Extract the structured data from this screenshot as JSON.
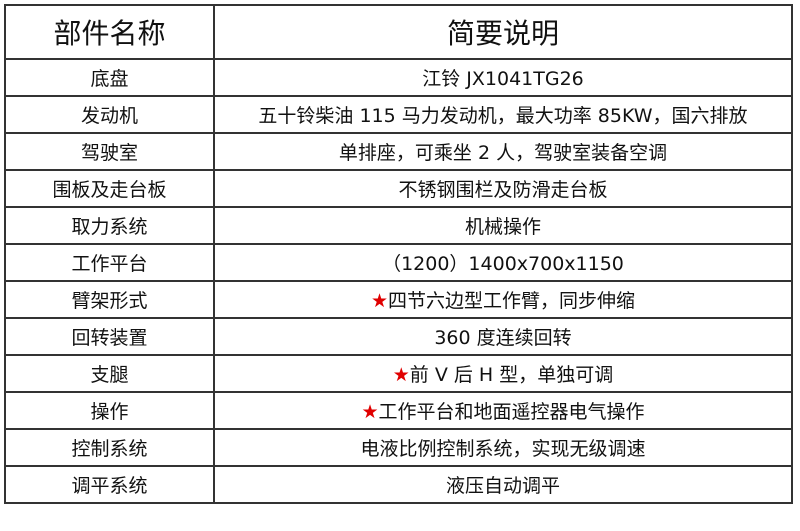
{
  "header": {
    "col1": "部件名称",
    "col2": "简要说明"
  },
  "star_color": "#e00000",
  "rows": [
    {
      "name": "底盘",
      "desc": "江铃 JX1041TG26",
      "star": false
    },
    {
      "name": "发动机",
      "desc": "五十铃柴油 115 马力发动机，最大功率 85KW，国六排放",
      "star": false
    },
    {
      "name": "驾驶室",
      "desc": "单排座，可乘坐 2 人，驾驶室装备空调",
      "star": false
    },
    {
      "name": "围板及走台板",
      "desc": "不锈钢围栏及防滑走台板",
      "star": false
    },
    {
      "name": "取力系统",
      "desc": "机械操作",
      "star": false
    },
    {
      "name": "工作平台",
      "desc": "（1200）1400x700x1150",
      "star": false
    },
    {
      "name": "臂架形式",
      "desc": "四节六边型工作臂，同步伸缩",
      "star": true
    },
    {
      "name": "回转装置",
      "desc": "360 度连续回转",
      "star": false
    },
    {
      "name": "支腿",
      "desc": "前 V 后 H 型，单独可调",
      "star": true
    },
    {
      "name": "操作",
      "desc": "工作平台和地面遥控器电气操作",
      "star": true
    },
    {
      "name": "控制系统",
      "desc": "电液比例控制系统，实现无级调速",
      "star": false
    },
    {
      "name": "调平系统",
      "desc": "液压自动调平",
      "star": false
    }
  ],
  "star_glyph": "★"
}
